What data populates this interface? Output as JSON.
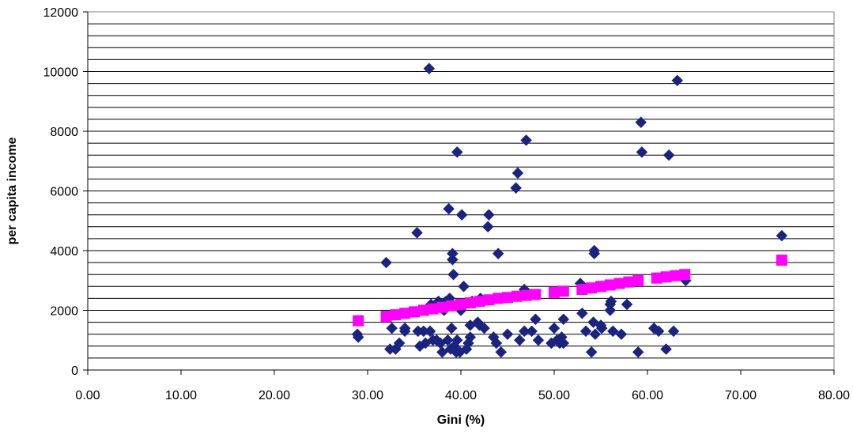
{
  "chart_data": {
    "type": "scatter",
    "title": "",
    "xlabel": "Gini (%)",
    "ylabel": "per capita income",
    "xlim": [
      0,
      80
    ],
    "ylim": [
      0,
      12000
    ],
    "x_ticks": [
      0,
      10,
      20,
      30,
      40,
      50,
      60,
      70,
      80
    ],
    "x_tick_labels": [
      "0.00",
      "10.00",
      "20.00",
      "30.00",
      "40.00",
      "50.00",
      "60.00",
      "70.00",
      "80.00"
    ],
    "y_ticks": [
      0,
      2000,
      4000,
      6000,
      8000,
      10000,
      12000
    ],
    "y_tick_labels": [
      "0",
      "2000",
      "4000",
      "6000",
      "8000",
      "10000",
      "12000"
    ],
    "minor_grid_step": 400,
    "grid": true,
    "legend": "none",
    "series": [
      {
        "marker": "diamond",
        "color": "#1a237e",
        "points": [
          [
            28.9,
            1200
          ],
          [
            29.0,
            1100
          ],
          [
            32.0,
            3600
          ],
          [
            32.4,
            700
          ],
          [
            32.6,
            1400
          ],
          [
            33.0,
            700
          ],
          [
            33.4,
            900
          ],
          [
            34.0,
            1300
          ],
          [
            34.0,
            1400
          ],
          [
            35.3,
            4600
          ],
          [
            35.4,
            1300
          ],
          [
            35.6,
            800
          ],
          [
            36.0,
            1300
          ],
          [
            36.2,
            900
          ],
          [
            36.6,
            10100
          ],
          [
            36.7,
            1300
          ],
          [
            36.8,
            2200
          ],
          [
            37.0,
            1000
          ],
          [
            37.4,
            1000
          ],
          [
            37.6,
            2300
          ],
          [
            37.8,
            900
          ],
          [
            38.0,
            600
          ],
          [
            38.2,
            2000
          ],
          [
            38.4,
            2300
          ],
          [
            38.6,
            1000
          ],
          [
            38.7,
            5400
          ],
          [
            38.8,
            2400
          ],
          [
            38.9,
            700
          ],
          [
            39.0,
            1400
          ],
          [
            39.1,
            3700
          ],
          [
            39.1,
            3900
          ],
          [
            39.2,
            3200
          ],
          [
            39.3,
            800
          ],
          [
            39.5,
            600
          ],
          [
            39.6,
            1000
          ],
          [
            39.6,
            7300
          ],
          [
            39.9,
            600
          ],
          [
            40.0,
            2000
          ],
          [
            40.1,
            5200
          ],
          [
            40.3,
            2800
          ],
          [
            40.6,
            700
          ],
          [
            40.8,
            900
          ],
          [
            41.0,
            1100
          ],
          [
            41.0,
            1500
          ],
          [
            41.2,
            2300
          ],
          [
            41.8,
            1600
          ],
          [
            42.0,
            1500
          ],
          [
            42.1,
            2400
          ],
          [
            42.5,
            1400
          ],
          [
            42.9,
            4800
          ],
          [
            43.0,
            5200
          ],
          [
            43.5,
            1100
          ],
          [
            43.8,
            900
          ],
          [
            44.0,
            3900
          ],
          [
            44.3,
            600
          ],
          [
            45.0,
            1200
          ],
          [
            45.9,
            6100
          ],
          [
            46.1,
            6600
          ],
          [
            46.3,
            1000
          ],
          [
            46.8,
            1300
          ],
          [
            46.8,
            2700
          ],
          [
            47.0,
            7700
          ],
          [
            47.6,
            1300
          ],
          [
            48.0,
            1700
          ],
          [
            48.3,
            1000
          ],
          [
            49.7,
            900
          ],
          [
            50.0,
            1400
          ],
          [
            50.3,
            1000
          ],
          [
            50.6,
            900
          ],
          [
            50.8,
            1100
          ],
          [
            51.0,
            900
          ],
          [
            51.0,
            1700
          ],
          [
            52.8,
            2900
          ],
          [
            53.0,
            1900
          ],
          [
            53.4,
            1300
          ],
          [
            54.0,
            600
          ],
          [
            54.2,
            1600
          ],
          [
            54.3,
            4000
          ],
          [
            54.3,
            3900
          ],
          [
            54.4,
            1200
          ],
          [
            55.0,
            1500
          ],
          [
            55.1,
            1400
          ],
          [
            56.0,
            2000
          ],
          [
            56.0,
            2200
          ],
          [
            56.1,
            2300
          ],
          [
            56.3,
            1300
          ],
          [
            57.2,
            1200
          ],
          [
            57.8,
            2200
          ],
          [
            59.0,
            600
          ],
          [
            59.3,
            8300
          ],
          [
            59.4,
            7300
          ],
          [
            60.7,
            1400
          ],
          [
            61.2,
            1300
          ],
          [
            62.0,
            700
          ],
          [
            62.3,
            7200
          ],
          [
            62.8,
            1300
          ],
          [
            63.2,
            9700
          ],
          [
            64.1,
            3000
          ],
          [
            74.4,
            4500
          ]
        ]
      },
      {
        "marker": "square",
        "color": "#ff00ff",
        "points": [
          [
            29.0,
            1650
          ],
          [
            32.0,
            1800
          ],
          [
            33.0,
            1850
          ],
          [
            34.0,
            1900
          ],
          [
            35.0,
            1950
          ],
          [
            36.0,
            2000
          ],
          [
            37.0,
            2050
          ],
          [
            38.0,
            2100
          ],
          [
            39.0,
            2150
          ],
          [
            40.0,
            2200
          ],
          [
            41.0,
            2250
          ],
          [
            42.0,
            2300
          ],
          [
            43.0,
            2350
          ],
          [
            44.0,
            2400
          ],
          [
            45.0,
            2430
          ],
          [
            46.0,
            2470
          ],
          [
            47.0,
            2500
          ],
          [
            48.0,
            2530
          ],
          [
            50.0,
            2600
          ],
          [
            51.0,
            2640
          ],
          [
            53.0,
            2700
          ],
          [
            54.0,
            2750
          ],
          [
            55.0,
            2800
          ],
          [
            56.0,
            2850
          ],
          [
            57.0,
            2900
          ],
          [
            58.0,
            2950
          ],
          [
            59.0,
            3000
          ],
          [
            61.0,
            3080
          ],
          [
            62.0,
            3120
          ],
          [
            63.0,
            3160
          ],
          [
            64.0,
            3200
          ],
          [
            74.4,
            3680
          ]
        ]
      }
    ]
  }
}
